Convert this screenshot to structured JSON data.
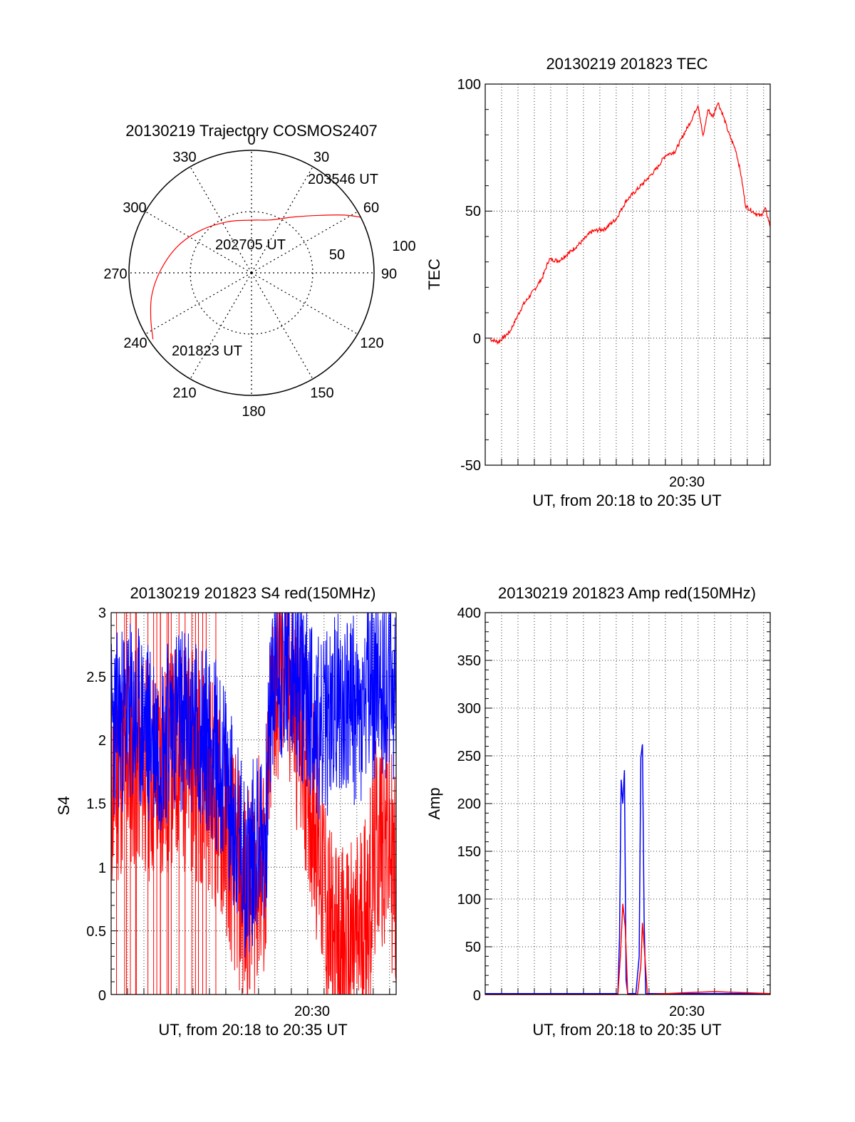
{
  "colors": {
    "red": "#ff0000",
    "blue": "#0000ff",
    "grid": "#000000",
    "background": "#ffffff"
  },
  "polar": {
    "title": "20130219 Trajectory COSMOS2407",
    "azimuth_labels": [
      "0",
      "30",
      "60",
      "90",
      "120",
      "150",
      "180",
      "210",
      "240",
      "270",
      "300",
      "330"
    ],
    "radial_labels": [
      "50",
      "100"
    ],
    "start_label": "201823 UT",
    "mid_label": "202705 UT",
    "end_label": "203546 UT"
  },
  "xaxis": {
    "label": "UT, from 20:18 to 20:35 UT",
    "tick": "20:30"
  },
  "chart_data": [
    {
      "type": "polar-line",
      "title": "20130219 Trajectory COSMOS2407",
      "theta_ticks_deg": [
        0,
        30,
        60,
        90,
        120,
        150,
        180,
        210,
        240,
        270,
        300,
        330
      ],
      "r_ticks": [
        50,
        100
      ],
      "rlim": [
        0,
        100
      ],
      "series": [
        {
          "color": "#ff0000",
          "points_az_r": [
            [
              236,
              97
            ],
            [
              246,
              90
            ],
            [
              258,
              83
            ],
            [
              272,
              74
            ],
            [
              290,
              64
            ],
            [
              310,
              54
            ],
            [
              335,
              46
            ],
            [
              360,
              43
            ],
            [
              20,
              46
            ],
            [
              38,
              58
            ],
            [
              50,
              73
            ],
            [
              58,
              89
            ],
            [
              63,
              100
            ]
          ]
        }
      ],
      "annotations": [
        "201823 UT",
        "202705 UT",
        "203546 UT"
      ]
    },
    {
      "type": "line",
      "title": "20130219 201823 TEC",
      "ylabel": "TEC",
      "xlabel": "UT, from 20:18 to 20:35 UT",
      "xlim_min": [
        0,
        17.4
      ],
      "ylim": [
        -50,
        100
      ],
      "yticks": [
        -50,
        0,
        50,
        100
      ],
      "xtick": {
        "value_min": 12,
        "label": "20:30"
      },
      "series": [
        {
          "color": "#ff0000",
          "x_min": [
            0.3,
            0.8,
            1.5,
            2.3,
            3.0,
            3.5,
            3.9,
            4.5,
            5.2,
            5.9,
            6.5,
            7.3,
            8.0,
            8.6,
            9.2,
            9.8,
            10.5,
            11.0,
            11.6,
            12.1,
            12.6,
            13.0,
            13.3,
            13.6,
            13.9,
            14.2,
            14.5,
            14.9,
            15.3,
            15.6,
            15.9,
            16.3,
            16.8,
            17.1,
            17.4
          ],
          "y": [
            -0.5,
            -1.5,
            2.5,
            13,
            19,
            24,
            31,
            30.5,
            34,
            38,
            42,
            43,
            47,
            54,
            58,
            62,
            67,
            72,
            73.5,
            80,
            86,
            92,
            79,
            90,
            87,
            93,
            88,
            80,
            74,
            65,
            52,
            50,
            48,
            51,
            44
          ]
        }
      ]
    },
    {
      "type": "line",
      "title": "20130219 201823 S4 red(150MHz)",
      "ylabel": "S4",
      "xlabel": "UT, from 20:18 to 20:35 UT",
      "xlim_min": [
        0,
        17.4
      ],
      "ylim": [
        0,
        3
      ],
      "yticks": [
        0,
        0.5,
        1,
        1.5,
        2,
        2.5,
        3
      ],
      "xtick": {
        "value_min": 12,
        "label": "20:30"
      },
      "series": [
        {
          "name": "red",
          "color": "#ff0000",
          "x_min": [
            0,
            1,
            2,
            3,
            4,
            5,
            6,
            7,
            7.8,
            8.2,
            8.6,
            9.0,
            9.4,
            9.8,
            10.2,
            10.6,
            11.0,
            11.6,
            12.2,
            12.8,
            13.4,
            14.0,
            14.6,
            15.2,
            15.8,
            16.4,
            17.0,
            17.4
          ],
          "y": [
            1.6,
            1.9,
            1.8,
            1.7,
            1.9,
            1.8,
            1.7,
            1.3,
            0.9,
            0.7,
            0.8,
            1.0,
            0.9,
            2.3,
            2.5,
            2.6,
            2.4,
            2.0,
            1.6,
            1.1,
            0.4,
            0.3,
            0.3,
            0.5,
            0.8,
            1.3,
            1.2,
            0.8
          ]
        },
        {
          "name": "blue",
          "color": "#0000ff",
          "x_min": [
            0,
            1,
            2,
            3,
            4,
            5,
            6,
            7,
            7.8,
            8.2,
            8.6,
            9.0,
            9.4,
            9.8,
            10.2,
            10.6,
            11.0,
            11.6,
            12.2,
            12.8,
            13.4,
            14.0,
            14.6,
            15.2,
            15.8,
            16.4,
            17.0,
            17.4
          ],
          "y": [
            2.1,
            2.2,
            2.1,
            2.0,
            2.2,
            2.1,
            2.0,
            1.7,
            1.2,
            1.0,
            1.1,
            1.3,
            1.2,
            2.4,
            2.5,
            2.6,
            2.5,
            2.4,
            2.3,
            2.0,
            2.2,
            2.3,
            2.3,
            2.1,
            2.4,
            2.5,
            2.4,
            2.3
          ]
        }
      ]
    },
    {
      "type": "line",
      "title": "20130219 201823 Amp red(150MHz)",
      "ylabel": "Amp",
      "xlabel": "UT, from 20:18 to 20:35 UT",
      "xlim_min": [
        0,
        17.4
      ],
      "ylim": [
        0,
        400
      ],
      "yticks": [
        0,
        50,
        100,
        150,
        200,
        250,
        300,
        350,
        400
      ],
      "xtick": {
        "value_min": 12,
        "label": "20:30"
      },
      "series": [
        {
          "name": "blue",
          "color": "#0000ff",
          "x_min": [
            0,
            8.1,
            8.2,
            8.3,
            8.4,
            8.5,
            8.6,
            8.7,
            9.2,
            9.4,
            9.5,
            9.6,
            9.7,
            9.8,
            17.4
          ],
          "y": [
            1,
            1,
            60,
            225,
            200,
            235,
            15,
            1,
            1,
            40,
            248,
            262,
            80,
            1,
            1
          ]
        },
        {
          "name": "red",
          "color": "#ff0000",
          "x_min": [
            0,
            8.1,
            8.25,
            8.4,
            8.55,
            8.7,
            9.3,
            9.5,
            9.6,
            9.75,
            9.9,
            12.5,
            14.0,
            17.4
          ],
          "y": [
            0,
            0,
            40,
            95,
            70,
            0,
            0,
            30,
            75,
            40,
            0,
            2,
            3,
            1
          ]
        }
      ]
    }
  ]
}
